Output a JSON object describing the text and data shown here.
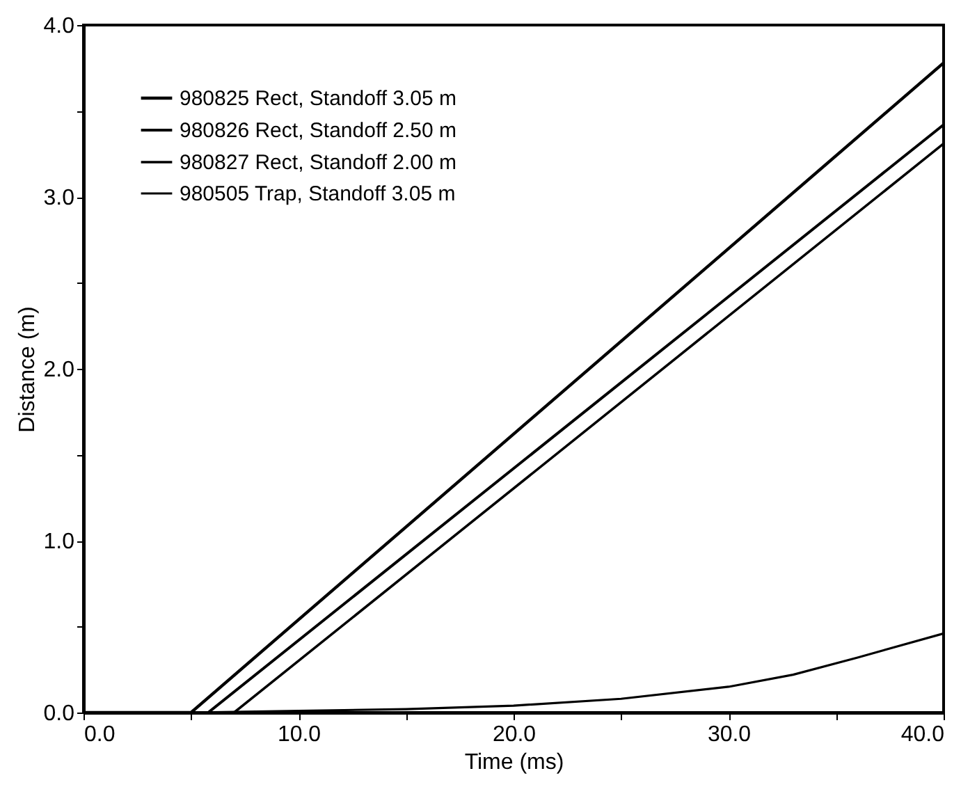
{
  "chart_data": {
    "type": "line",
    "xlabel": "Time (ms)",
    "ylabel": "Distance (m)",
    "xlim": [
      0,
      40
    ],
    "ylim": [
      0,
      4
    ],
    "xticks": [
      {
        "value": 0,
        "label": "0.0"
      },
      {
        "value": 5,
        "label": null
      },
      {
        "value": 10,
        "label": "10.0"
      },
      {
        "value": 15,
        "label": null
      },
      {
        "value": 20,
        "label": "20.0"
      },
      {
        "value": 25,
        "label": null
      },
      {
        "value": 30,
        "label": "30.0"
      },
      {
        "value": 35,
        "label": null
      },
      {
        "value": 40,
        "label": "40.0"
      }
    ],
    "yticks": [
      {
        "value": 0,
        "label": "0.0"
      },
      {
        "value": 0.5,
        "label": null
      },
      {
        "value": 1,
        "label": "1.0"
      },
      {
        "value": 1.5,
        "label": null
      },
      {
        "value": 2,
        "label": "2.0"
      },
      {
        "value": 2.5,
        "label": null
      },
      {
        "value": 3,
        "label": "3.0"
      },
      {
        "value": 3.5,
        "label": null
      },
      {
        "value": 4,
        "label": "4.0"
      }
    ],
    "grid": false,
    "legend": "top left",
    "marker": "none",
    "line_style": "solid",
    "series": [
      {
        "name": "980825 Rect, Standoff 3.05 m",
        "color": "#000000",
        "x": [
          0,
          5.0,
          40
        ],
        "values": [
          0,
          0,
          3.78
        ]
      },
      {
        "name": "980826 Rect, Standoff 2.50 m",
        "color": "#000000",
        "x": [
          0,
          5.8,
          40
        ],
        "values": [
          0,
          0,
          3.42
        ]
      },
      {
        "name": "980827 Rect, Standoff 2.00 m",
        "color": "#000000",
        "x": [
          0,
          7.0,
          40
        ],
        "values": [
          0,
          0,
          3.31
        ]
      },
      {
        "name": "980505 Trap, Standoff 3.05 m",
        "color": "#000000",
        "x": [
          0,
          5,
          10,
          15,
          20,
          25,
          30,
          33,
          36,
          40
        ],
        "values": [
          0,
          0,
          0.01,
          0.02,
          0.04,
          0.08,
          0.15,
          0.22,
          0.32,
          0.46
        ]
      }
    ]
  }
}
